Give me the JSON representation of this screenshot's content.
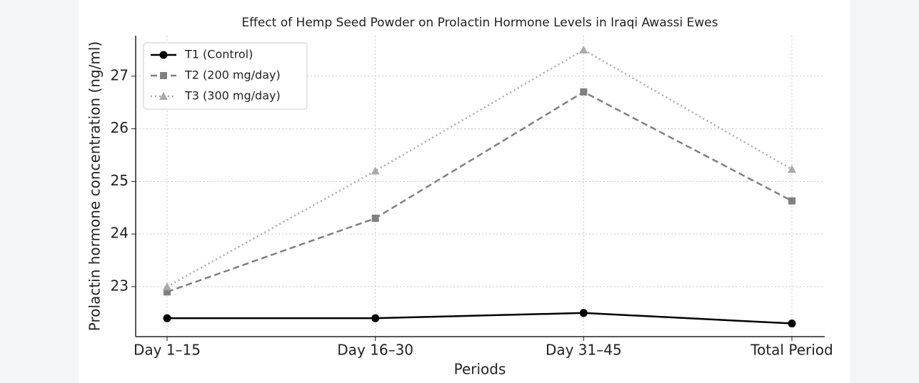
{
  "chart_data": {
    "type": "line",
    "title": "Effect of Hemp Seed Powder on Prolactin Hormone Levels in Iraqi Awassi Ewes",
    "x_label": "Periods",
    "y_label": "Prolactin hormone concentration (ng/ml)",
    "categories": [
      "Day 1–15",
      "Day 16–30",
      "Day 31–45",
      "Total Period"
    ],
    "series": [
      {
        "name": "T1 (Control)",
        "color": "#000000",
        "dash": "solid",
        "marker": "circle",
        "values": [
          22.4,
          22.4,
          22.5,
          22.3
        ]
      },
      {
        "name": "T2 (200 mg/day)",
        "color": "#808080",
        "dash": "dashed",
        "marker": "square",
        "values": [
          22.9,
          24.3,
          26.7,
          24.63
        ]
      },
      {
        "name": "T3 (300 mg/day)",
        "color": "#aaaaaa",
        "dash": "dotted",
        "marker": "triangle",
        "values": [
          23.0,
          25.2,
          27.5,
          25.23
        ]
      }
    ],
    "ylim": [
      22.05,
      27.77
    ],
    "yticks": [
      23,
      24,
      25,
      26,
      27
    ],
    "grid": true,
    "legend": "upper left"
  }
}
